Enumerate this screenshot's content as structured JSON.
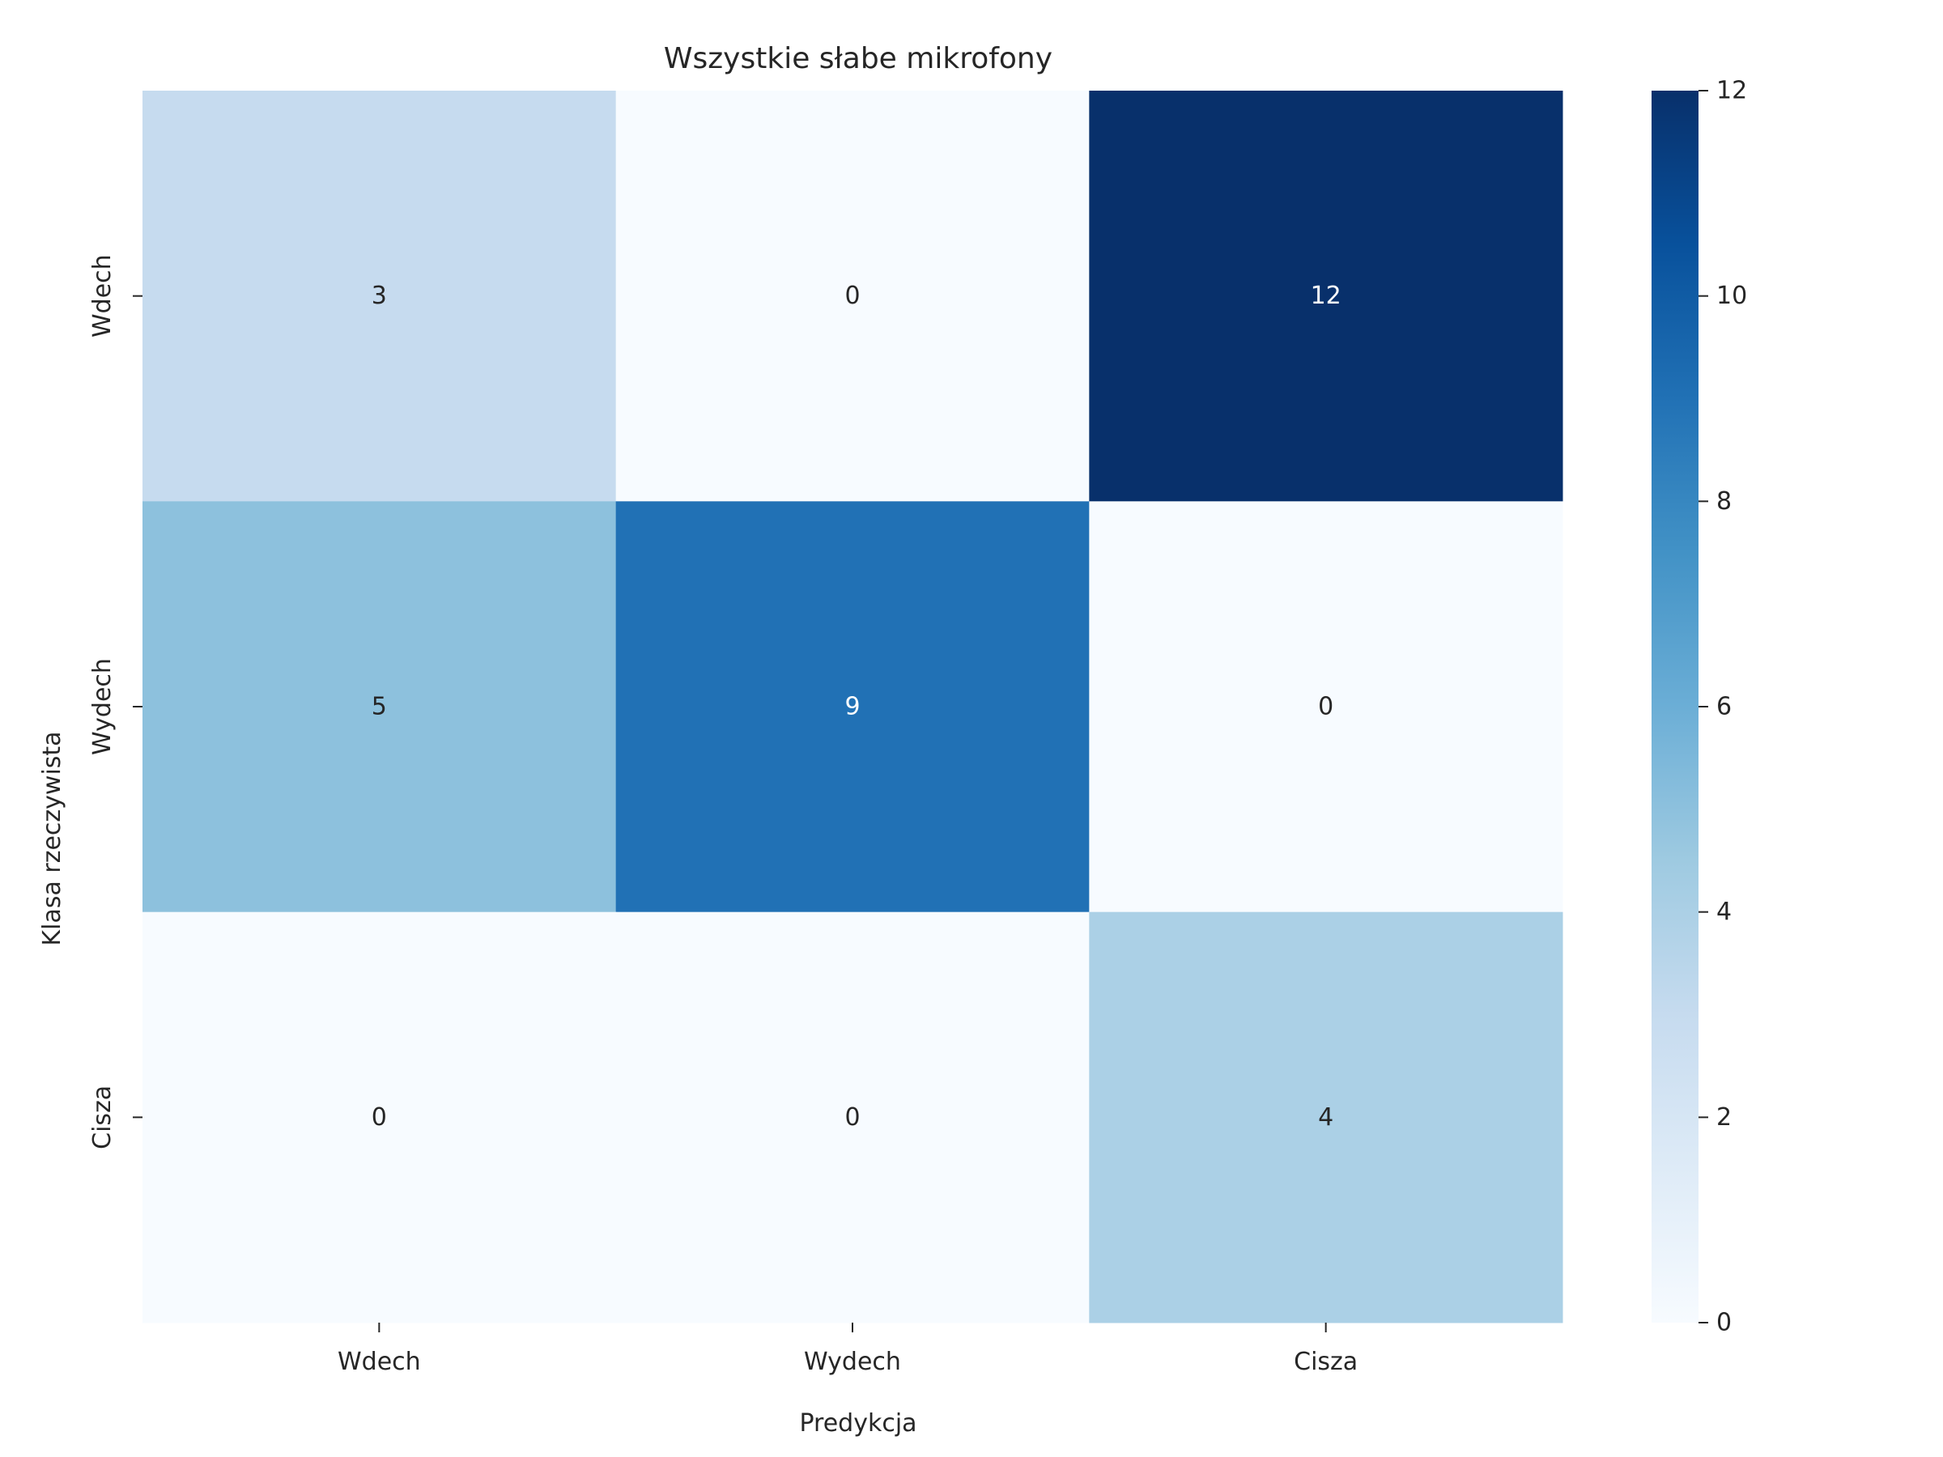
{
  "chart_data": {
    "type": "heatmap",
    "title": "Wszystkie słabe mikrofony",
    "xlabel": "Predykcja",
    "ylabel": "Klasa rzeczywista",
    "x_categories": [
      "Wdech",
      "Wydech",
      "Cisza"
    ],
    "y_categories": [
      "Wdech",
      "Wydech",
      "Cisza"
    ],
    "values": [
      [
        3,
        0,
        12
      ],
      [
        5,
        9,
        0
      ],
      [
        0,
        0,
        4
      ]
    ],
    "colormap": "Blues",
    "vmin": 0,
    "vmax": 12,
    "colorbar_ticks": [
      0,
      2,
      4,
      6,
      8,
      10,
      12
    ],
    "grid": false
  }
}
